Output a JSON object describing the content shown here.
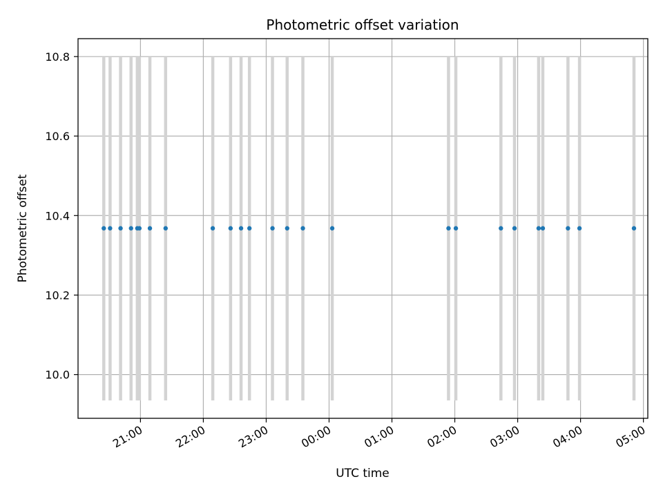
{
  "chart_data": {
    "type": "scatter",
    "title": "Photometric offset variation",
    "xlabel": "UTC time",
    "ylabel": "Photometric offset",
    "x_axis": "time (hours since 20:00 UTC, date axis)",
    "xlim": [
      0.007,
      9.07
    ],
    "ylim": [
      9.89,
      10.845
    ],
    "grid": true,
    "y_ticks": [
      "10.0",
      "10.2",
      "10.4",
      "10.6",
      "10.8"
    ],
    "x_ticks": [
      "21:00",
      "22:00",
      "23:00",
      "00:00",
      "01:00",
      "02:00",
      "03:00",
      "04:00",
      "05:00"
    ],
    "point_color": "#1f77b4",
    "errorbar_color": "#d3d3d3",
    "series": [
      {
        "x": [
          "20:25",
          "20:31",
          "20:41",
          "20:51",
          "20:57",
          "20:59",
          "21:09",
          "21:24",
          "22:09",
          "22:26",
          "22:36",
          "22:44",
          "23:06",
          "23:20",
          "23:35",
          "00:03",
          "01:54",
          "02:01",
          "02:44",
          "02:57",
          "03:20",
          "03:24",
          "03:48",
          "03:59",
          "04:51"
        ],
        "y": [
          10.368,
          10.368,
          10.368,
          10.368,
          10.368,
          10.368,
          10.368,
          10.368,
          10.368,
          10.368,
          10.368,
          10.368,
          10.368,
          10.368,
          10.368,
          10.368,
          10.368,
          10.368,
          10.368,
          10.368,
          10.368,
          10.368,
          10.368,
          10.368,
          10.368
        ],
        "y_err_low": [
          9.935,
          9.935,
          9.935,
          9.935,
          9.935,
          9.935,
          9.935,
          9.935,
          9.935,
          9.935,
          9.935,
          9.935,
          9.935,
          9.935,
          9.935,
          9.935,
          9.935,
          9.935,
          9.935,
          9.935,
          9.935,
          9.935,
          9.935,
          9.935,
          9.935
        ],
        "y_err_high": [
          10.8,
          10.8,
          10.8,
          10.8,
          10.8,
          10.8,
          10.8,
          10.8,
          10.8,
          10.8,
          10.8,
          10.8,
          10.8,
          10.8,
          10.8,
          10.8,
          10.8,
          10.8,
          10.8,
          10.8,
          10.8,
          10.8,
          10.8,
          10.8,
          10.8
        ]
      }
    ]
  }
}
